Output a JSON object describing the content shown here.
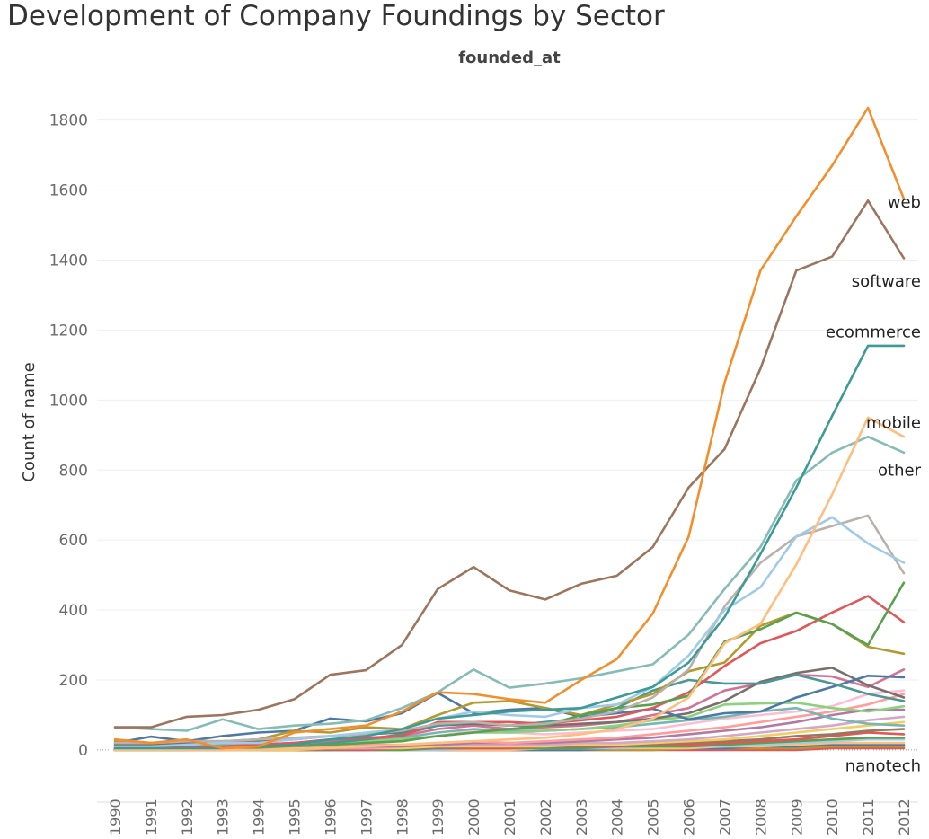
{
  "page": {
    "title": "Development of Company Foundings by Sector"
  },
  "chart_data": {
    "type": "line",
    "title": "Development of Company Foundings by Sector",
    "column_header": "founded_at",
    "ylabel": "Count of name",
    "xlabel": "",
    "ylim": [
      -90,
      1930
    ],
    "yticks": [
      0,
      200,
      400,
      600,
      800,
      1000,
      1200,
      1400,
      1600,
      1800
    ],
    "grid": true,
    "legend": "none",
    "x": [
      "1990",
      "1991",
      "1992",
      "1993",
      "1994",
      "1995",
      "1996",
      "1997",
      "1998",
      "1999",
      "2000",
      "2001",
      "2002",
      "2003",
      "2004",
      "2005",
      "2006",
      "2007",
      "2008",
      "2009",
      "2010",
      "2011",
      "2012"
    ],
    "end_labels": [
      {
        "text": "web",
        "value": 1565
      },
      {
        "text": "software",
        "value": 1340
      },
      {
        "text": "ecommerce",
        "value": 1195
      },
      {
        "text": "mobile",
        "value": 935
      },
      {
        "text": "other",
        "value": 800
      },
      {
        "text": "nanotech",
        "value": -45
      }
    ],
    "series": [
      {
        "name": "web",
        "color": "#f28e2b",
        "values": [
          30,
          20,
          30,
          5,
          10,
          50,
          60,
          70,
          110,
          165,
          160,
          145,
          135,
          200,
          260,
          390,
          610,
          1050,
          1370,
          1525,
          1670,
          1835,
          1575
        ]
      },
      {
        "name": "software",
        "color": "#9c755f",
        "values": [
          65,
          65,
          95,
          100,
          115,
          145,
          215,
          228,
          300,
          460,
          523,
          456,
          430,
          475,
          498,
          580,
          750,
          860,
          1090,
          1370,
          1410,
          1570,
          1405
        ]
      },
      {
        "name": "ecommerce",
        "color": "#3d9a94",
        "values": [
          5,
          5,
          5,
          5,
          10,
          15,
          30,
          40,
          60,
          90,
          100,
          110,
          115,
          120,
          150,
          180,
          250,
          380,
          560,
          750,
          955,
          1155,
          1155
        ]
      },
      {
        "name": "mobile",
        "color": "#ffbe7d",
        "values": [
          0,
          0,
          0,
          0,
          0,
          5,
          5,
          10,
          15,
          20,
          25,
          30,
          35,
          45,
          60,
          90,
          150,
          305,
          360,
          530,
          730,
          950,
          895
        ]
      },
      {
        "name": "other",
        "color": "#86bcb6",
        "values": [
          65,
          60,
          55,
          88,
          60,
          70,
          75,
          85,
          120,
          165,
          230,
          178,
          190,
          205,
          225,
          245,
          330,
          460,
          580,
          770,
          850,
          895,
          850
        ]
      },
      {
        "name": "",
        "color": "#a0cbe8",
        "values": [
          10,
          10,
          15,
          20,
          20,
          30,
          40,
          50,
          60,
          90,
          110,
          100,
          95,
          120,
          130,
          180,
          270,
          400,
          465,
          610,
          665,
          590,
          535
        ]
      },
      {
        "name": "",
        "color": "#bab0ac",
        "values": [
          20,
          20,
          25,
          25,
          30,
          35,
          40,
          45,
          55,
          75,
          80,
          70,
          75,
          90,
          110,
          150,
          230,
          410,
          535,
          610,
          640,
          670,
          505
        ]
      },
      {
        "name": "",
        "color": "#59a14f",
        "values": [
          0,
          0,
          0,
          5,
          5,
          10,
          15,
          20,
          25,
          40,
          50,
          60,
          70,
          100,
          120,
          130,
          155,
          310,
          345,
          392,
          360,
          300,
          478
        ]
      },
      {
        "name": "",
        "color": "#b6992d",
        "values": [
          25,
          20,
          25,
          25,
          30,
          55,
          50,
          65,
          60,
          100,
          135,
          140,
          120,
          100,
          130,
          160,
          225,
          250,
          355,
          393,
          360,
          295,
          275
        ]
      },
      {
        "name": "",
        "color": "#e15759",
        "values": [
          5,
          5,
          10,
          10,
          15,
          20,
          30,
          35,
          40,
          80,
          80,
          80,
          75,
          85,
          95,
          120,
          165,
          240,
          305,
          340,
          393,
          440,
          365
        ]
      },
      {
        "name": "",
        "color": "#499894",
        "values": [
          0,
          0,
          0,
          5,
          5,
          10,
          20,
          30,
          45,
          70,
          80,
          70,
          80,
          90,
          120,
          170,
          200,
          190,
          190,
          215,
          190,
          160,
          140
        ]
      },
      {
        "name": "",
        "color": "#4e79a7",
        "values": [
          20,
          38,
          25,
          40,
          50,
          55,
          90,
          82,
          105,
          163,
          105,
          115,
          120,
          95,
          105,
          118,
          88,
          105,
          110,
          150,
          180,
          212,
          208
        ]
      },
      {
        "name": "",
        "color": "#79706e",
        "values": [
          15,
          15,
          20,
          20,
          25,
          30,
          40,
          45,
          50,
          70,
          75,
          70,
          70,
          75,
          80,
          90,
          105,
          140,
          195,
          220,
          235,
          185,
          150
        ]
      },
      {
        "name": "",
        "color": "#d37295",
        "values": [
          5,
          5,
          10,
          10,
          15,
          20,
          25,
          30,
          40,
          60,
          70,
          60,
          65,
          70,
          80,
          100,
          120,
          170,
          190,
          215,
          210,
          180,
          230
        ]
      },
      {
        "name": "",
        "color": "#8cd17d",
        "values": [
          5,
          5,
          10,
          10,
          10,
          15,
          20,
          25,
          30,
          40,
          50,
          50,
          55,
          60,
          70,
          85,
          95,
          130,
          133,
          135,
          120,
          110,
          125
        ]
      },
      {
        "name": "",
        "color": "#76b7b2",
        "values": [
          10,
          10,
          10,
          15,
          15,
          20,
          25,
          30,
          35,
          50,
          60,
          55,
          55,
          60,
          65,
          75,
          85,
          95,
          110,
          120,
          90,
          75,
          70
        ]
      },
      {
        "name": "",
        "color": "#fabfd2",
        "values": [
          0,
          0,
          5,
          5,
          5,
          10,
          15,
          20,
          30,
          40,
          55,
          50,
          45,
          50,
          55,
          60,
          75,
          90,
          100,
          110,
          125,
          160,
          170
        ]
      },
      {
        "name": "",
        "color": "#ff9d9a",
        "values": [
          0,
          0,
          0,
          5,
          5,
          5,
          10,
          15,
          15,
          20,
          25,
          20,
          25,
          30,
          35,
          45,
          55,
          65,
          80,
          95,
          110,
          130,
          160
        ]
      },
      {
        "name": "",
        "color": "#b07aa1",
        "values": [
          0,
          0,
          0,
          0,
          5,
          5,
          5,
          10,
          10,
          15,
          20,
          20,
          20,
          25,
          30,
          35,
          45,
          55,
          65,
          80,
          100,
          115,
          115
        ]
      },
      {
        "name": "",
        "color": "#d4a6c8",
        "values": [
          0,
          0,
          0,
          0,
          0,
          5,
          5,
          5,
          10,
          15,
          15,
          15,
          15,
          20,
          20,
          25,
          30,
          40,
          50,
          60,
          70,
          85,
          95
        ]
      },
      {
        "name": "",
        "color": "#f1ce63",
        "values": [
          0,
          0,
          0,
          0,
          0,
          0,
          5,
          5,
          5,
          10,
          10,
          10,
          10,
          15,
          15,
          20,
          25,
          30,
          40,
          50,
          60,
          70,
          80
        ]
      },
      {
        "name": "",
        "color": "#9d7660",
        "values": [
          0,
          0,
          0,
          0,
          0,
          0,
          0,
          5,
          5,
          5,
          10,
          10,
          10,
          10,
          15,
          15,
          20,
          25,
          30,
          40,
          45,
          55,
          60
        ]
      },
      {
        "name": "",
        "color": "#e15759",
        "values": [
          0,
          0,
          0,
          0,
          0,
          0,
          0,
          0,
          5,
          5,
          5,
          5,
          10,
          10,
          10,
          15,
          15,
          20,
          25,
          30,
          40,
          50,
          45
        ]
      },
      {
        "name": "",
        "color": "#59a14f",
        "values": [
          0,
          0,
          0,
          0,
          0,
          0,
          0,
          0,
          0,
          5,
          5,
          5,
          5,
          5,
          10,
          10,
          10,
          15,
          20,
          25,
          30,
          35,
          35
        ]
      },
      {
        "name": "",
        "color": "#a0cbe8",
        "values": [
          0,
          0,
          0,
          0,
          0,
          0,
          0,
          0,
          0,
          0,
          5,
          5,
          5,
          5,
          5,
          10,
          10,
          10,
          15,
          20,
          25,
          30,
          30
        ]
      },
      {
        "name": "",
        "color": "#ffbe7d",
        "values": [
          0,
          0,
          0,
          0,
          0,
          0,
          0,
          0,
          0,
          0,
          0,
          0,
          5,
          5,
          5,
          5,
          5,
          10,
          10,
          15,
          20,
          20,
          20
        ]
      },
      {
        "name": "",
        "color": "#4e79a7",
        "values": [
          0,
          0,
          0,
          0,
          0,
          0,
          0,
          0,
          0,
          0,
          0,
          0,
          0,
          0,
          5,
          5,
          5,
          5,
          10,
          10,
          15,
          15,
          15
        ]
      },
      {
        "name": "",
        "color": "#b6992d",
        "values": [
          0,
          0,
          0,
          0,
          0,
          0,
          0,
          0,
          0,
          0,
          0,
          0,
          0,
          0,
          0,
          0,
          5,
          5,
          5,
          5,
          10,
          10,
          10
        ]
      },
      {
        "name": "nanotech",
        "color": "#e15759",
        "values": [
          0,
          0,
          0,
          0,
          0,
          0,
          0,
          0,
          0,
          0,
          0,
          0,
          0,
          0,
          0,
          0,
          0,
          0,
          0,
          0,
          5,
          5,
          5
        ]
      }
    ]
  }
}
